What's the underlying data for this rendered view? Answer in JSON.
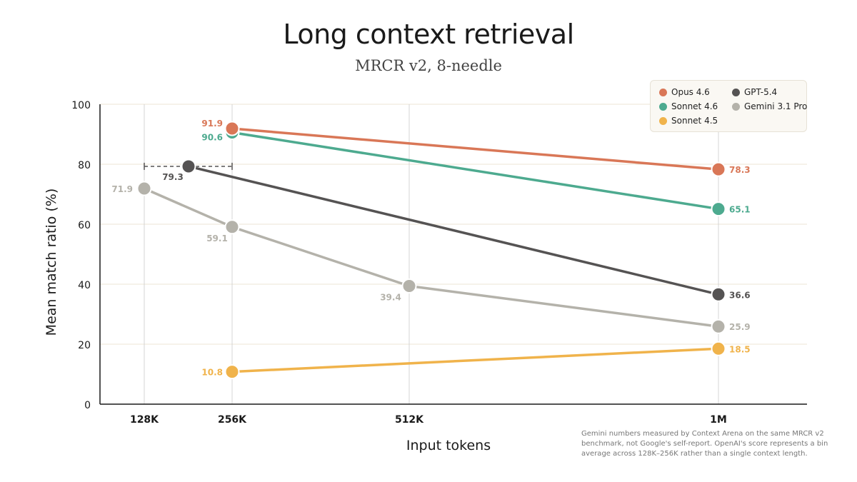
{
  "chart_data": {
    "type": "line",
    "title": "Long context retrieval",
    "subtitle": "MRCR v2, 8-needle",
    "xlabel": "Input tokens",
    "ylabel": "Mean match ratio (%)",
    "x": [
      "128K",
      "256K",
      "512K",
      "1M"
    ],
    "ylim": [
      0,
      100
    ],
    "yticks": [
      "0",
      "20",
      "40",
      "60",
      "80",
      "100"
    ],
    "grid": true,
    "legend_position": "top-right",
    "series": [
      {
        "name": "Opus 4.6",
        "color": "#d97757",
        "points": [
          {
            "x": "256K",
            "y": 91.9,
            "label": "91.9"
          },
          {
            "x": "1M",
            "y": 78.3,
            "label": "78.3"
          }
        ]
      },
      {
        "name": "Sonnet 4.6",
        "color": "#4daa8f",
        "points": [
          {
            "x": "256K",
            "y": 90.6,
            "label": "90.6"
          },
          {
            "x": "1M",
            "y": 65.1,
            "label": "65.1"
          }
        ]
      },
      {
        "name": "Sonnet 4.5",
        "color": "#f0b34b",
        "points": [
          {
            "x": "256K",
            "y": 10.8,
            "label": "10.8"
          },
          {
            "x": "1M",
            "y": 18.5,
            "label": "18.5"
          }
        ]
      },
      {
        "name": "GPT-5.4",
        "color": "#555353",
        "points": [
          {
            "x": "128K–256K",
            "y": 79.3,
            "label": "79.3"
          },
          {
            "x": "1M",
            "y": 36.6,
            "label": "36.6"
          }
        ]
      },
      {
        "name": "Gemini 3.1 Pro",
        "color": "#b4b2aa",
        "points": [
          {
            "x": "128K",
            "y": 71.9,
            "label": "71.9"
          },
          {
            "x": "256K",
            "y": 59.1,
            "label": "59.1"
          },
          {
            "x": "512K",
            "y": 39.4,
            "label": "39.4"
          },
          {
            "x": "1M",
            "y": 25.9,
            "label": "25.9"
          }
        ]
      }
    ],
    "annotations": [
      "Gemini numbers measured by Context Arena on the same MRCR v2 benchmark, not Google's self-report. OpenAI's score represents a bin average across 128K–256K rather than a single context length."
    ]
  }
}
